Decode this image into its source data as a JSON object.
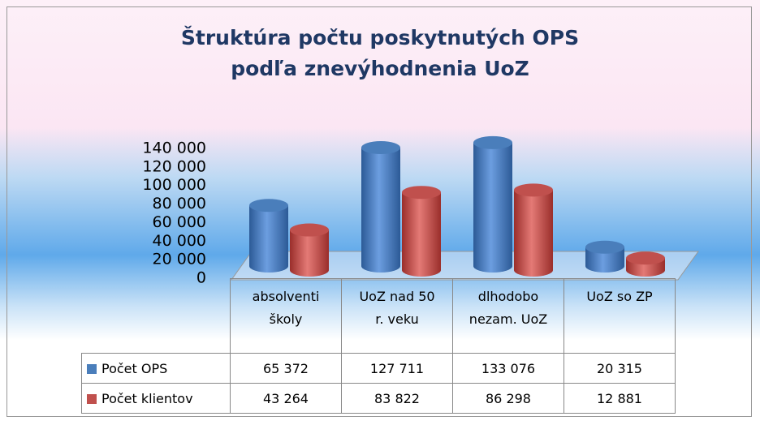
{
  "chart_data": {
    "type": "bar",
    "title": "Štruktúra počtu poskytnutých OPS podľa znevýhodnenia UoZ",
    "categories": [
      "absolventi školy",
      "UoZ nad 50 r. veku",
      "dlhodobo nezam. UoZ",
      "UoZ so ZP"
    ],
    "series": [
      {
        "name": "Počet OPS",
        "color": "#4a7ebb",
        "values": [
          65372,
          127711,
          133076,
          20315
        ],
        "value_labels": [
          "65 372",
          "127 711",
          "133 076",
          "20 315"
        ]
      },
      {
        "name": "Počet klientov",
        "color": "#c0504d",
        "values": [
          43264,
          83822,
          86298,
          12881
        ],
        "value_labels": [
          "43 264",
          "83 822",
          "86 298",
          "12 881"
        ]
      }
    ],
    "ylim": [
      0,
      140000
    ],
    "yticks": [
      0,
      {
        "value": 20000,
        "label": "20 000"
      },
      {
        "value": 40000,
        "label": "40 000"
      },
      {
        "value": 60000,
        "label": "60 000"
      },
      {
        "value": 80000,
        "label": "80 000"
      },
      {
        "value": 100000,
        "label": "100 000"
      },
      {
        "value": 120000,
        "label": "120 000"
      },
      {
        "value": 140000,
        "label": "140 000"
      }
    ],
    "grid": false
  }
}
